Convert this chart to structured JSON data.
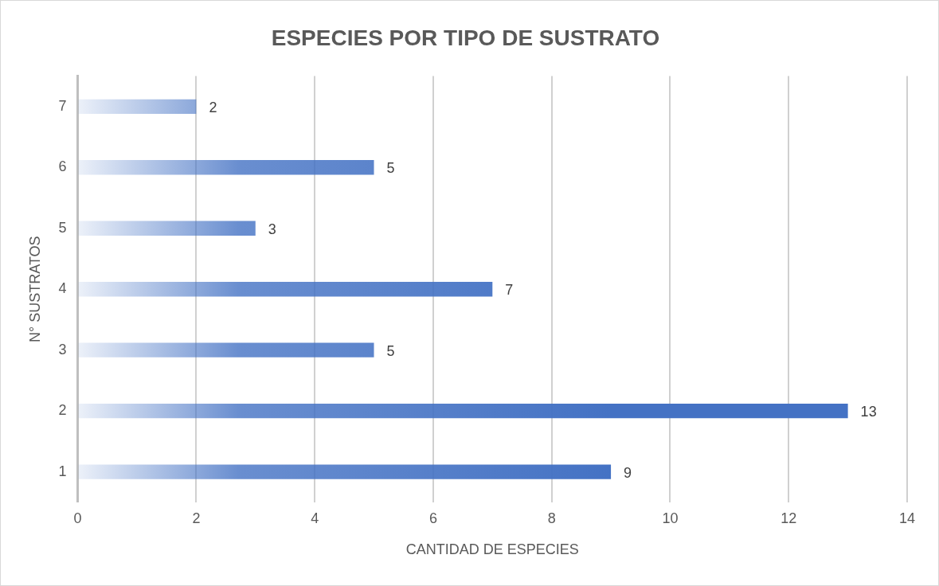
{
  "chart_data": {
    "type": "bar",
    "orientation": "horizontal",
    "title": "ESPECIES POR TIPO DE SUSTRATO",
    "xlabel": "CANTIDAD DE ESPECIES",
    "ylabel": "N° SUSTRATOS",
    "categories": [
      "7",
      "6",
      "5",
      "4",
      "3",
      "2",
      "1"
    ],
    "values": [
      2,
      5,
      3,
      7,
      5,
      13,
      9
    ],
    "color": "#4472c4",
    "xlim": [
      0,
      14
    ],
    "xticks": [
      0,
      2,
      4,
      6,
      8,
      10,
      12,
      14
    ],
    "grid": "x",
    "legend": false,
    "data_labels": true
  }
}
